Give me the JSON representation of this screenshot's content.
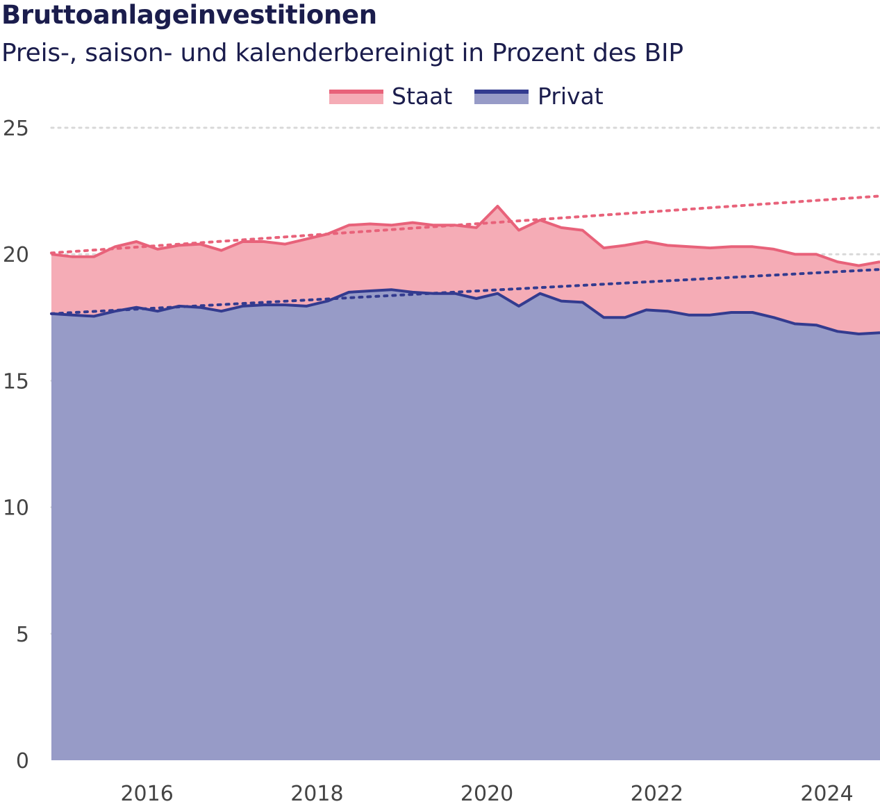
{
  "chart_data": {
    "type": "area",
    "title": "Bruttoanlageinvestitionen",
    "subtitle": "Preis-, saison- und kalenderbereinigt in Prozent des BIP",
    "xlabel": "",
    "ylabel": "",
    "ylim": [
      0,
      25
    ],
    "yticks": [
      0,
      5,
      10,
      15,
      20,
      25
    ],
    "xlim": [
      2015.0,
      2024.75
    ],
    "xticks": [
      2016,
      2018,
      2020,
      2022,
      2024
    ],
    "xtick_labels": [
      "2016",
      "2018",
      "2020",
      "2022",
      "2024"
    ],
    "grid": true,
    "legend_position": "top-center",
    "series": [
      {
        "name": "Staat",
        "line_color": "#e8627a",
        "fill_color": "#f5acb6",
        "values": [
          20.0,
          19.9,
          19.9,
          20.3,
          20.5,
          20.2,
          20.35,
          20.4,
          20.15,
          20.5,
          20.5,
          20.4,
          20.6,
          20.8,
          21.15,
          21.2,
          21.15,
          21.25,
          21.15,
          21.15,
          21.05,
          21.9,
          20.95,
          21.35,
          21.05,
          20.95,
          20.25,
          20.35,
          20.5,
          20.35,
          20.3,
          20.25,
          20.3,
          20.3,
          20.2,
          20.0,
          20.0,
          19.7,
          19.55,
          19.7
        ]
      },
      {
        "name": "Privat",
        "line_color": "#333b8f",
        "fill_color": "#979bc7",
        "values": [
          17.65,
          17.6,
          17.55,
          17.75,
          17.9,
          17.75,
          17.95,
          17.9,
          17.75,
          17.95,
          18.0,
          18.0,
          17.95,
          18.15,
          18.5,
          18.55,
          18.6,
          18.5,
          18.45,
          18.45,
          18.25,
          18.45,
          17.95,
          18.45,
          18.15,
          18.1,
          17.5,
          17.5,
          17.8,
          17.75,
          17.6,
          17.6,
          17.7,
          17.7,
          17.5,
          17.25,
          17.2,
          16.95,
          16.85,
          16.9
        ]
      }
    ],
    "trend_lines": [
      {
        "name": "Staat",
        "start": 20.05,
        "end": 22.3,
        "color": "#e8627a"
      },
      {
        "name": "Privat",
        "start": 17.65,
        "end": 19.4,
        "color": "#333b8f"
      }
    ]
  }
}
